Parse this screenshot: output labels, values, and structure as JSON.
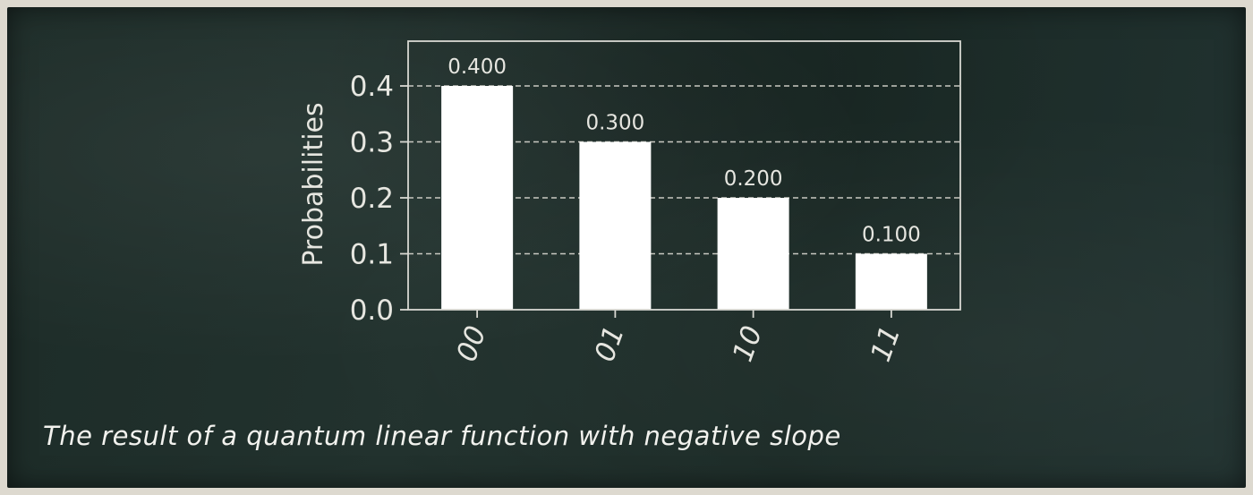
{
  "caption": "The result of a quantum linear function with negative slope",
  "chart_data": {
    "type": "bar",
    "categories": [
      "00",
      "01",
      "10",
      "11"
    ],
    "values": [
      0.4,
      0.3,
      0.2,
      0.1
    ],
    "data_labels": [
      "0.400",
      "0.300",
      "0.200",
      "0.100"
    ],
    "title": "",
    "xlabel": "",
    "ylabel": "Probabilities",
    "ylim": [
      0,
      0.48
    ],
    "yticks": [
      0.0,
      0.1,
      0.2,
      0.3,
      0.4
    ],
    "ytick_labels": [
      "0.0",
      "0.1",
      "0.2",
      "0.3",
      "0.4"
    ],
    "grid": "horizontal-dashed",
    "bar_color": "#ffffff",
    "axis_color": "#d8d8d2",
    "text_color": "#e6e6e0"
  }
}
